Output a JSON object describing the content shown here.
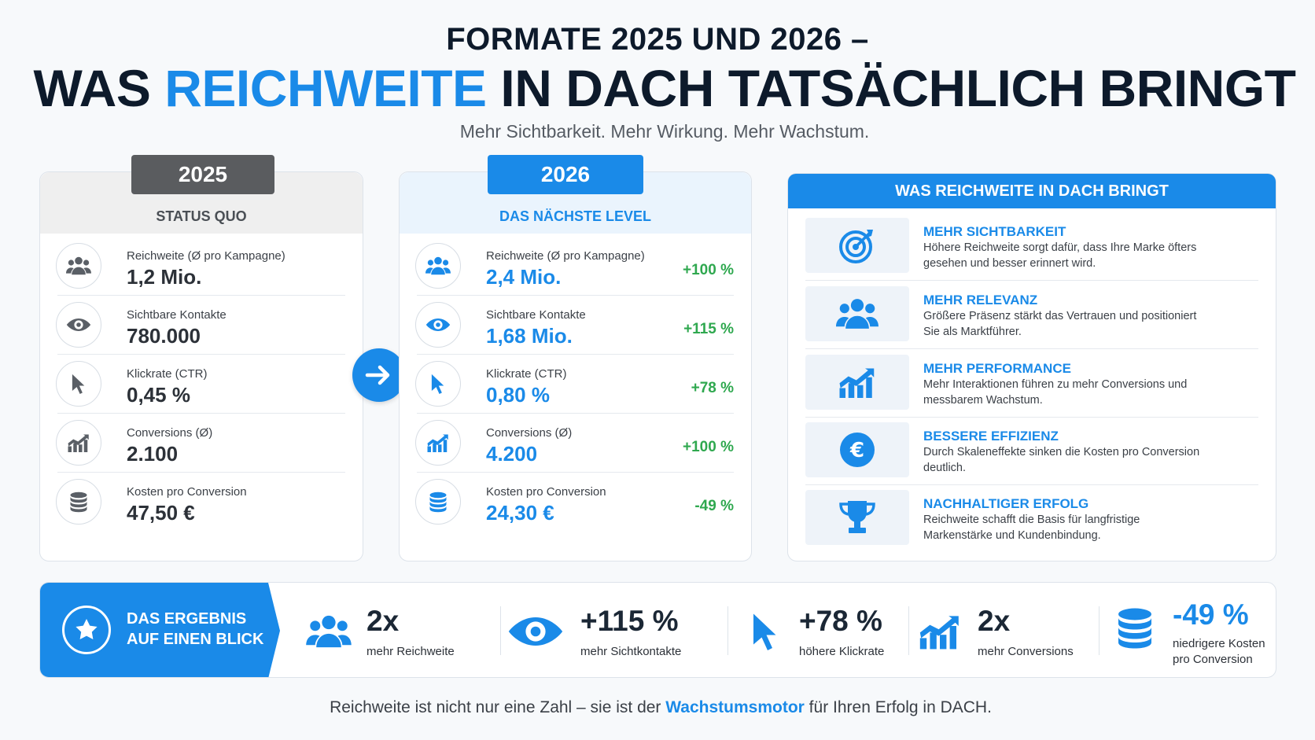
{
  "header": {
    "title_line1": "FORMATE 2025 UND 2026 –",
    "title_line2_part1": "WAS ",
    "title_line2_highlight": "REICHWEITE",
    "title_line2_part2": " IN DACH TATSÄCHLICH BRINGT",
    "subtitle": "Mehr Sichtbarkeit. Mehr Wirkung. Mehr Wachstum."
  },
  "col2025": {
    "year": "2025",
    "label": "STATUS QUO",
    "metrics": [
      {
        "icon": "group-icon",
        "label": "Reichweite (Ø pro Kampagne)",
        "value": "1,2 Mio."
      },
      {
        "icon": "eye-icon",
        "label": "Sichtbare Kontakte",
        "value": "780.000"
      },
      {
        "icon": "cursor-icon",
        "label": "Klickrate (CTR)",
        "value": "0,45 %"
      },
      {
        "icon": "growth-chart-icon",
        "label": "Conversions (Ø)",
        "value": "2.100"
      },
      {
        "icon": "coins-icon",
        "label": "Kosten pro Conversion",
        "value": "47,50 €"
      }
    ]
  },
  "col2026": {
    "year": "2026",
    "label": "DAS NÄCHSTE LEVEL",
    "metrics": [
      {
        "icon": "group-icon",
        "label": "Reichweite (Ø pro Kampagne)",
        "value": "2,4 Mio.",
        "change": "+100 %"
      },
      {
        "icon": "eye-icon",
        "label": "Sichtbare Kontakte",
        "value": "1,68 Mio.",
        "change": "+115 %"
      },
      {
        "icon": "cursor-icon",
        "label": "Klickrate (CTR)",
        "value": "0,80 %",
        "change": "+78 %"
      },
      {
        "icon": "growth-chart-icon",
        "label": "Conversions (Ø)",
        "value": "4.200",
        "change": "+100 %"
      },
      {
        "icon": "coins-icon",
        "label": "Kosten pro Conversion",
        "value": "24,30 €",
        "change": "-49 %"
      }
    ]
  },
  "benefits": {
    "title": "WAS REICHWEITE IN DACH BRINGT",
    "items": [
      {
        "icon": "target-icon",
        "title": "MEHR SICHTBARKEIT",
        "text": "Höhere Reichweite sorgt dafür, dass Ihre Marke öfters gesehen und besser erinnert wird."
      },
      {
        "icon": "group-icon",
        "title": "MEHR RELEVANZ",
        "text": "Größere Präsenz stärkt das Vertrauen und positioniert Sie als Marktführer."
      },
      {
        "icon": "growth-chart-icon",
        "title": "MEHR PERFORMANCE",
        "text": "Mehr Interaktionen führen zu mehr Conversions und messbarem Wachstum."
      },
      {
        "icon": "euro-icon",
        "title": "BESSERE EFFIZIENZ",
        "text": "Durch Skaleneffekte sinken die Kosten pro Conversion deutlich."
      },
      {
        "icon": "trophy-icon",
        "title": "NACHHALTIGER ERFOLG",
        "text": "Reichweite schafft die Basis für langfristige Markenstärke und Kundenbindung."
      }
    ]
  },
  "result": {
    "title_line1": "DAS ERGEBNIS",
    "title_line2": "AUF EINEN BLICK",
    "items": [
      {
        "icon": "group-icon",
        "value": "2x",
        "label": "mehr Reichweite"
      },
      {
        "icon": "eye-icon",
        "value": "+115 %",
        "label": "mehr Sichtkontakte"
      },
      {
        "icon": "cursor-icon",
        "value": "+78 %",
        "label": "höhere Klickrate"
      },
      {
        "icon": "growth-chart-icon",
        "value": "2x",
        "label": "mehr Conversions"
      },
      {
        "icon": "coins-icon",
        "value": "-49 %",
        "label_line1": "niedrigere Kosten",
        "label_line2": "pro Conversion"
      }
    ]
  },
  "footer": {
    "part1": "Reichweite ist nicht nur eine Zahl – sie ist der ",
    "highlight": "Wachstumsmotor",
    "part2": " für Ihren Erfolg in DACH."
  },
  "colors": {
    "accent": "#1a8ae8",
    "positive": "#2fa84f",
    "dark": "#0d1a2b",
    "grey_pill": "#5a5c5f"
  }
}
